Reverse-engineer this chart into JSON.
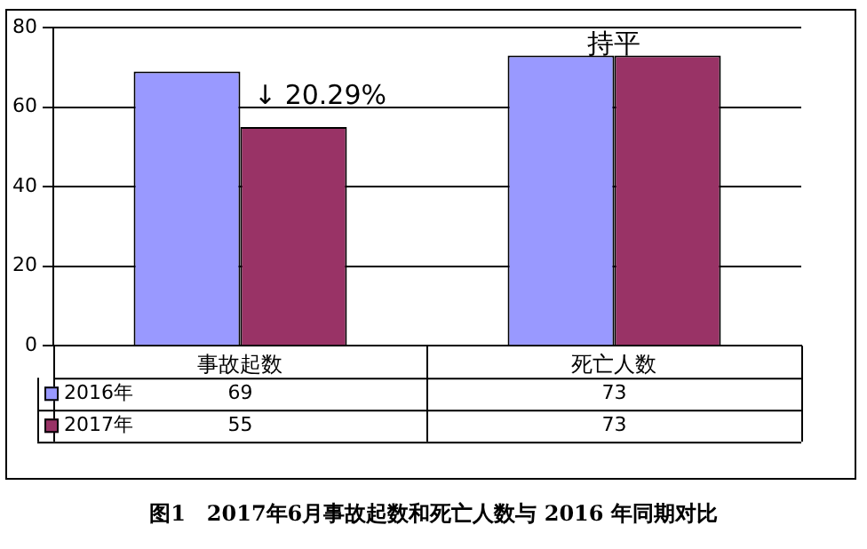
{
  "chart_data": {
    "type": "bar",
    "categories": [
      "事故起数",
      "死亡人数"
    ],
    "series": [
      {
        "name": "2016年",
        "color": "#9999ff",
        "values": [
          69,
          73
        ]
      },
      {
        "name": "2017年",
        "color": "#993366",
        "values": [
          55,
          73
        ]
      }
    ],
    "ylim": [
      0,
      80
    ],
    "yticks": [
      0,
      20,
      40,
      60,
      80
    ],
    "grid": "y",
    "legend": "bottom",
    "data_labels": true,
    "annotations": [
      {
        "text": "↓ 20.29%",
        "x": "事故起数",
        "y": 69
      },
      {
        "text": "持平",
        "x": "死亡人数",
        "y": 73
      },
      "图1　2017年6月事故起数和死亡人数与 2016 年同期对比"
    ]
  }
}
